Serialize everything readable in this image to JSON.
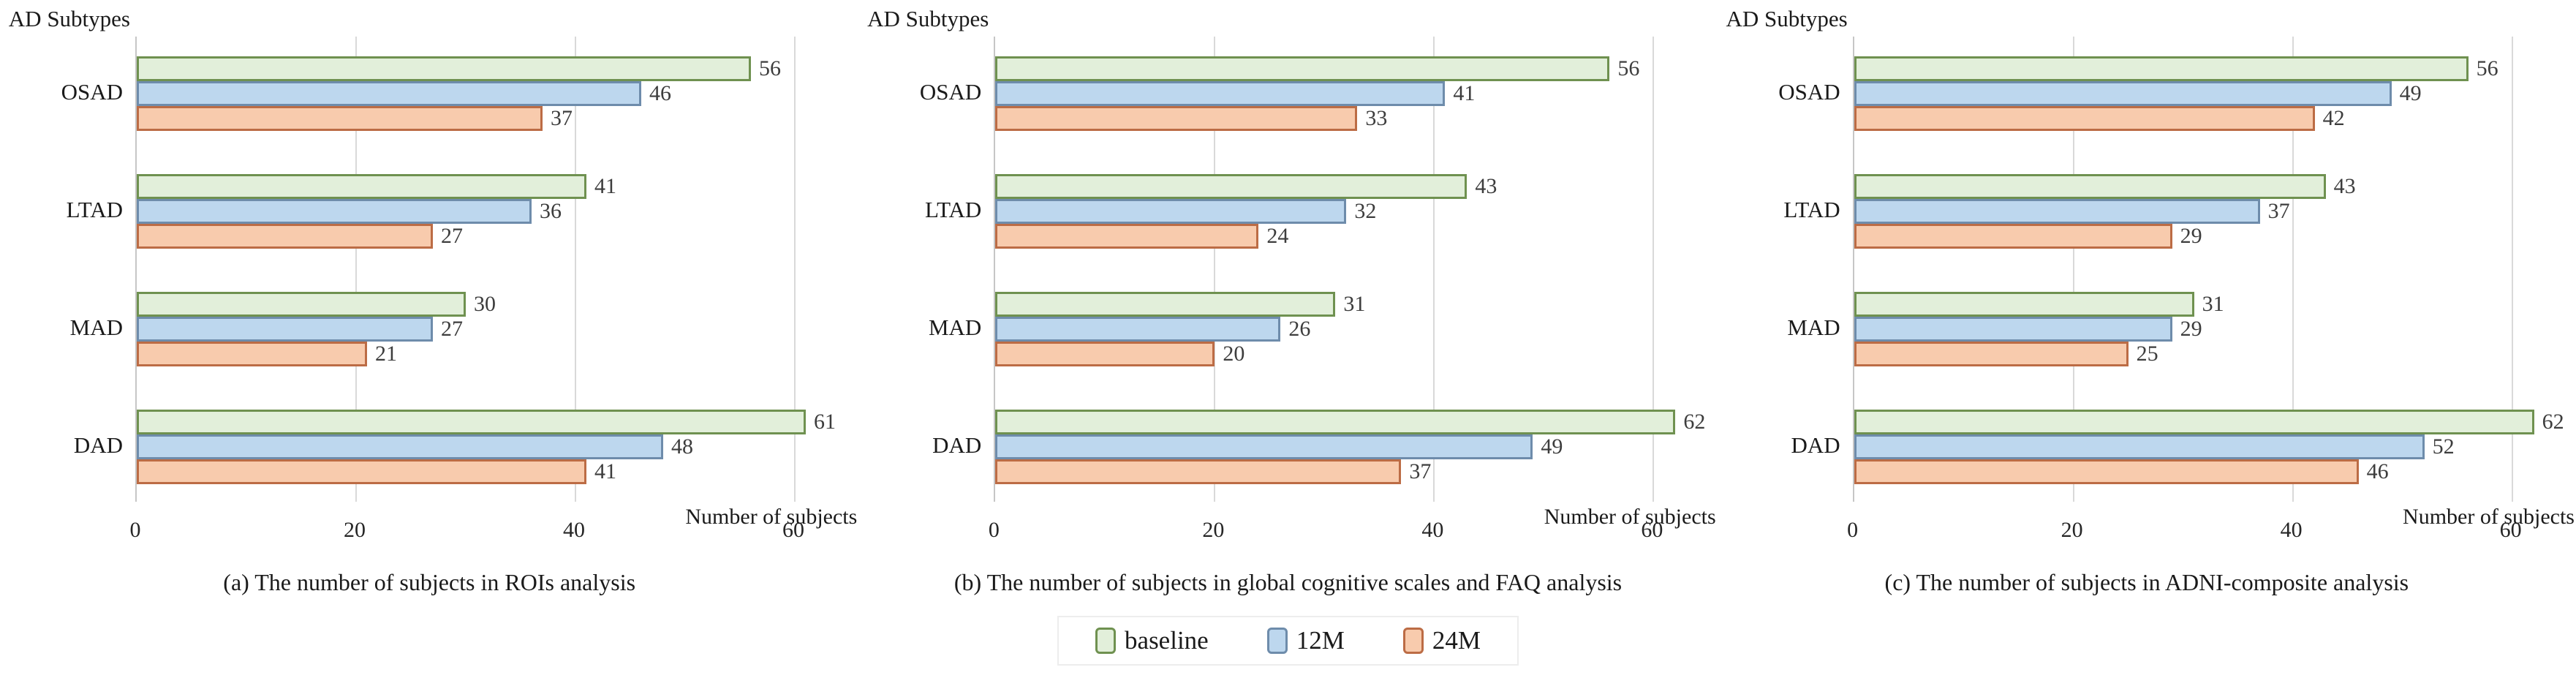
{
  "figure": {
    "legend": {
      "items": [
        {
          "label": "baseline",
          "fill": "#e2efda",
          "border": "#6f9150"
        },
        {
          "label": "12M",
          "fill": "#bdd7ee",
          "border": "#6e8cab"
        },
        {
          "label": "24M",
          "fill": "#f8cbad",
          "border": "#bc6c45"
        }
      ]
    }
  },
  "chart_data": [
    {
      "type": "bar",
      "orientation": "horizontal",
      "caption": "(a) The number of subjects in ROIs analysis",
      "y_axis_title": "AD Subtypes",
      "x_axis_title": "Number of subjects",
      "categories": [
        "OSAD",
        "LTAD",
        "MAD",
        "DAD"
      ],
      "series": [
        {
          "name": "baseline",
          "values": [
            56,
            41,
            30,
            61
          ]
        },
        {
          "name": "12M",
          "values": [
            46,
            36,
            27,
            48
          ]
        },
        {
          "name": "24M",
          "values": [
            37,
            27,
            21,
            41
          ]
        }
      ],
      "xticks": [
        0,
        20,
        40,
        60
      ],
      "xlim": [
        0,
        62
      ],
      "grid": true,
      "legend_position": "shared-bottom"
    },
    {
      "type": "bar",
      "orientation": "horizontal",
      "caption": "(b) The number of subjects in global cognitive scales and FAQ analysis",
      "y_axis_title": "AD Subtypes",
      "x_axis_title": "Number of subjects",
      "categories": [
        "OSAD",
        "LTAD",
        "MAD",
        "DAD"
      ],
      "series": [
        {
          "name": "baseline",
          "values": [
            56,
            43,
            31,
            62
          ]
        },
        {
          "name": "12M",
          "values": [
            41,
            32,
            26,
            49
          ]
        },
        {
          "name": "24M",
          "values": [
            33,
            24,
            20,
            37
          ]
        }
      ],
      "xticks": [
        0,
        20,
        40,
        60
      ],
      "xlim": [
        0,
        62
      ],
      "grid": true,
      "legend_position": "shared-bottom"
    },
    {
      "type": "bar",
      "orientation": "horizontal",
      "caption": "(c) The number of subjects in ADNI-composite analysis",
      "y_axis_title": "AD Subtypes",
      "x_axis_title": "Number of subjects",
      "categories": [
        "OSAD",
        "LTAD",
        "MAD",
        "DAD"
      ],
      "series": [
        {
          "name": "baseline",
          "values": [
            56,
            43,
            31,
            62
          ]
        },
        {
          "name": "12M",
          "values": [
            49,
            37,
            29,
            52
          ]
        },
        {
          "name": "24M",
          "values": [
            42,
            29,
            25,
            46
          ]
        }
      ],
      "xticks": [
        0,
        20,
        40,
        60
      ],
      "xlim": [
        0,
        62
      ],
      "grid": true,
      "legend_position": "shared-bottom"
    }
  ]
}
